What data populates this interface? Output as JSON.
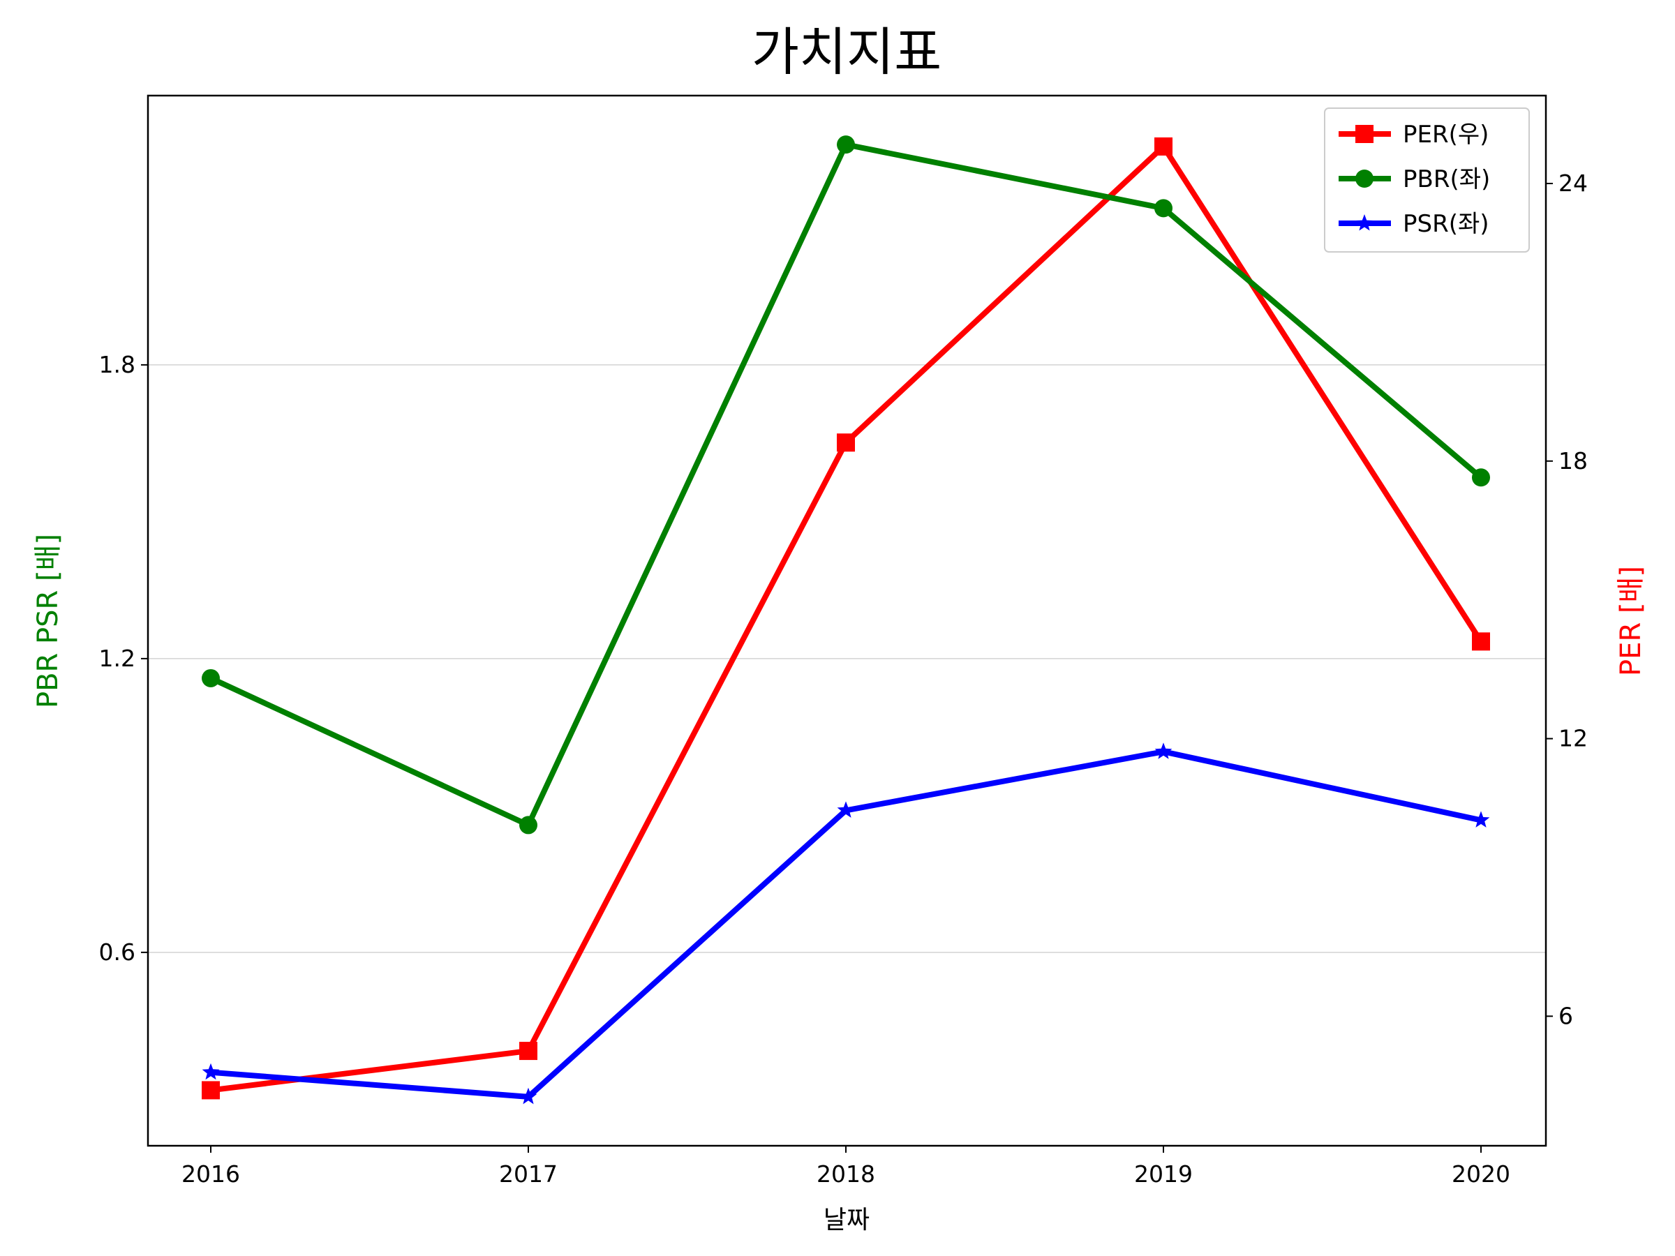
{
  "chart_data": {
    "type": "line",
    "title": "가치지표",
    "xlabel": "날짜",
    "ylabel_left": "PBR PSR [배]",
    "ylabel_right": "PER [배]",
    "categories": [
      "2016",
      "2017",
      "2018",
      "2019",
      "2020"
    ],
    "y_left": {
      "ticks": [
        "0.6",
        "1.2",
        "1.8"
      ],
      "tick_values": [
        0.6,
        1.2,
        1.8
      ],
      "range": [
        0.205,
        2.35
      ]
    },
    "y_right": {
      "ticks": [
        "6",
        "12",
        "18",
        "24"
      ],
      "tick_values": [
        6,
        12,
        18,
        24
      ],
      "range": [
        3.2,
        25.9
      ]
    },
    "grid": "horizontal (left axis)",
    "legend_position": "top-right",
    "series": [
      {
        "name": "PER(우)",
        "axis": "right",
        "marker": "square",
        "color": "#ff0000",
        "values": [
          4.4,
          5.25,
          18.4,
          24.8,
          14.1
        ]
      },
      {
        "name": "PBR(좌)",
        "axis": "left",
        "marker": "circle",
        "color": "#008000",
        "values": [
          1.16,
          0.86,
          2.25,
          2.12,
          1.57
        ]
      },
      {
        "name": "PSR(좌)",
        "axis": "left",
        "marker": "star",
        "color": "#0000ff",
        "values": [
          0.355,
          0.305,
          0.89,
          1.01,
          0.87
        ]
      }
    ]
  }
}
